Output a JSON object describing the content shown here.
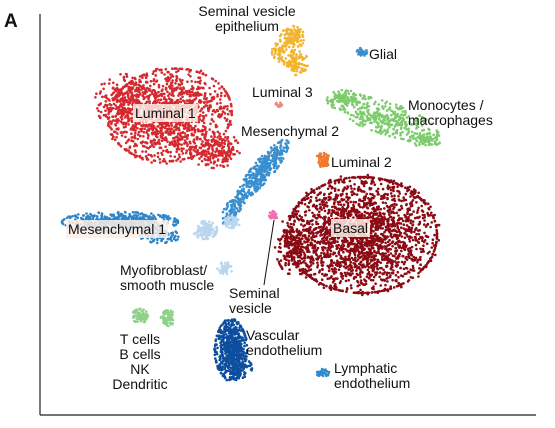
{
  "panel_label": "A",
  "chart_data": {
    "type": "scatter",
    "title": "",
    "xlabel": "",
    "ylabel": "",
    "grid": false,
    "legend": "none",
    "clusters": [
      {
        "name": "Seminal vesicle epithelium",
        "label_lines": [
          "Seminal vesicle",
          "epithelium"
        ],
        "color": "#f2b430"
      },
      {
        "name": "Glial",
        "label_lines": [
          "Glial"
        ],
        "color": "#3a8fd0"
      },
      {
        "name": "Luminal 1",
        "label_lines": [
          "Luminal 1"
        ],
        "color": "#d42a2f",
        "boxed": true
      },
      {
        "name": "Luminal 3",
        "label_lines": [
          "Luminal 3"
        ],
        "color": "#f08a7e"
      },
      {
        "name": "Monocytes / macrophages",
        "label_lines": [
          "Monocytes /",
          "macrophages"
        ],
        "color": "#7ecb6e"
      },
      {
        "name": "Mesenchymal 2",
        "label_lines": [
          "Mesenchymal 2"
        ],
        "color": "#3a8fd0"
      },
      {
        "name": "Luminal 2",
        "label_lines": [
          "Luminal 2"
        ],
        "color": "#f07a2a"
      },
      {
        "name": "Basal",
        "label_lines": [
          "Basal"
        ],
        "color": "#8b0a14",
        "boxed": true
      },
      {
        "name": "Mesenchymal 1",
        "label_lines": [
          "Mesenchymal 1"
        ],
        "color": "#2e86c8",
        "boxed": true
      },
      {
        "name": "Myofibroblast/ smooth muscle",
        "label_lines": [
          "Myofibroblast/",
          "smooth muscle"
        ],
        "color": "#b9d6ee"
      },
      {
        "name": "Seminal vesicle",
        "label_lines": [
          "Seminal",
          "vesicle"
        ],
        "color": "#f36fb0"
      },
      {
        "name": "T cells B cells NK Dendritic",
        "label_lines": [
          "T cells",
          "B cells",
          "NK",
          "Dendritic"
        ],
        "color": "#8fd08a"
      },
      {
        "name": "Vascular endothelium",
        "label_lines": [
          "Vascular",
          "endothelium"
        ],
        "color": "#0d4f9e"
      },
      {
        "name": "Lymphatic endothelium",
        "label_lines": [
          "Lymphatic",
          "endothelium"
        ],
        "color": "#2f8ac8"
      }
    ]
  }
}
